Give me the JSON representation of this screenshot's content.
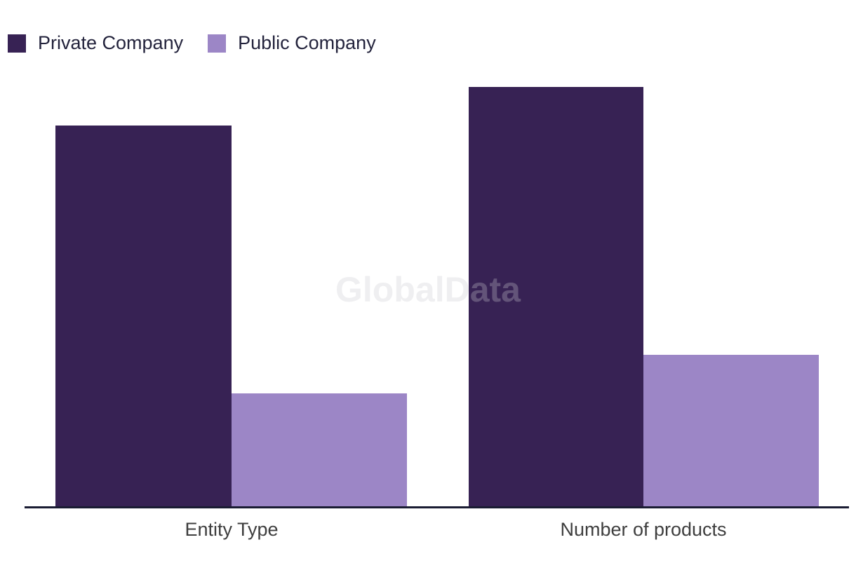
{
  "legend": {
    "items": [
      {
        "label": "Private Company",
        "color": "#372254"
      },
      {
        "label": "Public Company",
        "color": "#9C86C6"
      }
    ]
  },
  "watermark": {
    "text": "GlobalData"
  },
  "chart_data": {
    "type": "bar",
    "title": "",
    "categories": [
      "Entity Type",
      "Number of products"
    ],
    "series": [
      {
        "name": "Private Company",
        "color": "#372254",
        "values": [
          90.8,
          100
        ]
      },
      {
        "name": "Public Company",
        "color": "#9C86C6",
        "values": [
          26.9,
          36.2
        ]
      }
    ],
    "xlabel": "",
    "ylabel": "",
    "ylim": [
      0,
      100
    ],
    "grid": false,
    "y_axis_visible": false,
    "legend_position": "top-left",
    "axis_line_color": "#1A1C33",
    "note": "No numeric axis is shown; values are relative bar heights with 100 = tallest bar"
  }
}
